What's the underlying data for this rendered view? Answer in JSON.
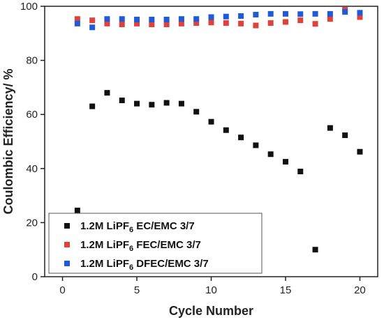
{
  "chart_data": {
    "type": "scatter",
    "xlabel": "Cycle Number",
    "ylabel": "Coulombic Efficiency/ %",
    "xlim": [
      -1.2,
      21.2
    ],
    "ylim": [
      0,
      100
    ],
    "xticks": [
      0,
      5,
      10,
      15,
      20
    ],
    "yticks": [
      0,
      20,
      40,
      60,
      80,
      100
    ],
    "grid": false,
    "legend_position": "bottom-left",
    "series": [
      {
        "name_parts": [
          "1.2M LiPF",
          "6",
          " EC/EMC 3/7"
        ],
        "color": "#111111",
        "x": [
          1,
          2,
          3,
          4,
          5,
          6,
          7,
          8,
          9,
          10,
          11,
          12,
          13,
          14,
          15,
          16,
          17,
          18,
          19,
          20
        ],
        "y": [
          24.5,
          63,
          68,
          65.2,
          64,
          63.6,
          64.3,
          64,
          61,
          57.3,
          54.2,
          51.5,
          48.6,
          45.3,
          42.5,
          38.9,
          10,
          55,
          52.3,
          46.2
        ]
      },
      {
        "name_parts": [
          "1.2M LiPF",
          "6",
          " FEC/EMC 3/7"
        ],
        "color": "#e0413a",
        "x": [
          1,
          2,
          3,
          4,
          5,
          6,
          7,
          8,
          9,
          10,
          11,
          12,
          13,
          14,
          15,
          16,
          17,
          18,
          19,
          20
        ],
        "y": [
          95.3,
          94.8,
          93.6,
          93.3,
          93.6,
          93.3,
          93.3,
          93.6,
          93.8,
          94,
          93.8,
          93.6,
          92.9,
          93.8,
          94.2,
          94.8,
          93.5,
          95.3,
          98.7,
          96
        ]
      },
      {
        "name_parts": [
          "1.2M LiPF",
          "6",
          " DFEC/EMC 3/7"
        ],
        "color": "#1f5bd6",
        "x": [
          1,
          2,
          3,
          4,
          5,
          6,
          7,
          8,
          9,
          10,
          11,
          12,
          13,
          14,
          15,
          16,
          17,
          18,
          19,
          20
        ],
        "y": [
          93.6,
          92.2,
          95.3,
          95.3,
          95.1,
          95.1,
          95.1,
          95.3,
          95.3,
          96,
          96.2,
          96.4,
          96.9,
          97.2,
          97.2,
          97.1,
          97.2,
          97.2,
          97.9,
          97.6
        ]
      }
    ]
  }
}
